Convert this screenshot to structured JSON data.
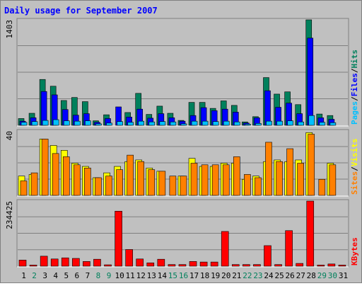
{
  "title": "Daily usage for September 2007",
  "colors": {
    "background": "#c0c0c0",
    "frame_light": "#ffffff",
    "frame_dark": "#808080",
    "grid": "#808080",
    "title": "#0000ff",
    "hits": "#00805c",
    "files": "#0000ff",
    "pages": "#00c0ff",
    "visits": "#ffff00",
    "sites": "#ff8000",
    "kbytes": "#ff0000",
    "day_weekday": "#000000",
    "day_weekend": "#00805c"
  },
  "chart_data": [
    {
      "type": "bar",
      "name": "hits-files-pages",
      "y_max_label": "1403",
      "ylim": [
        0,
        1403
      ],
      "legend_parts": [
        "Pages",
        "Files",
        "Hits"
      ],
      "categories": [
        "1",
        "2",
        "3",
        "4",
        "5",
        "6",
        "7",
        "8",
        "9",
        "10",
        "11",
        "12",
        "13",
        "14",
        "15",
        "16",
        "17",
        "18",
        "19",
        "20",
        "21",
        "22",
        "23",
        "24",
        "25",
        "26",
        "27",
        "28",
        "29",
        "30",
        "31"
      ],
      "series": [
        {
          "name": "Hits",
          "values": [
            90,
            160,
            610,
            520,
            330,
            370,
            315,
            60,
            140,
            0,
            170,
            425,
            145,
            255,
            160,
            65,
            305,
            305,
            225,
            325,
            265,
            45,
            115,
            635,
            415,
            445,
            275,
            1403,
            150,
            130,
            0
          ]
        },
        {
          "name": "Files",
          "values": [
            55,
            100,
            450,
            405,
            210,
            135,
            155,
            40,
            90,
            245,
            110,
            215,
            95,
            155,
            100,
            55,
            130,
            235,
            195,
            215,
            175,
            30,
            100,
            460,
            240,
            295,
            155,
            1160,
            100,
            80,
            0
          ]
        },
        {
          "name": "Pages",
          "values": [
            40,
            50,
            65,
            75,
            60,
            55,
            60,
            20,
            30,
            50,
            40,
            55,
            45,
            50,
            45,
            20,
            55,
            55,
            50,
            55,
            45,
            15,
            25,
            55,
            55,
            60,
            45,
            130,
            40,
            35,
            0
          ]
        }
      ]
    },
    {
      "type": "bar",
      "name": "visits-sites",
      "y_max_label": "40",
      "ylim": [
        0,
        40
      ],
      "legend_parts": [
        "Sites",
        "Visits"
      ],
      "categories": [
        "1",
        "2",
        "3",
        "4",
        "5",
        "6",
        "7",
        "8",
        "9",
        "10",
        "11",
        "12",
        "13",
        "14",
        "15",
        "16",
        "17",
        "18",
        "19",
        "20",
        "21",
        "22",
        "23",
        "24",
        "25",
        "26",
        "27",
        "28",
        "29",
        "30",
        "31"
      ],
      "series": [
        {
          "name": "Visits",
          "values": [
            12,
            13,
            35,
            31,
            28,
            20,
            18,
            11,
            14,
            18,
            21,
            22,
            17,
            15,
            0,
            12,
            23,
            18,
            18,
            20,
            20,
            10,
            12,
            21,
            22,
            21,
            22,
            39,
            0,
            20,
            0
          ]
        },
        {
          "name": "Sites",
          "values": [
            9,
            14,
            35,
            26,
            24,
            19,
            17,
            11,
            12,
            16,
            25,
            21,
            16,
            15,
            12,
            12,
            20,
            19,
            19,
            19,
            24,
            13,
            11,
            33,
            21,
            29,
            20,
            38,
            10,
            19,
            0
          ]
        }
      ]
    },
    {
      "type": "bar",
      "name": "kbytes",
      "y_max_label": "234425",
      "ylim": [
        0,
        234425
      ],
      "legend_parts": [
        "KBytes"
      ],
      "categories": [
        "1",
        "2",
        "3",
        "4",
        "5",
        "6",
        "7",
        "8",
        "9",
        "10",
        "11",
        "12",
        "13",
        "14",
        "15",
        "16",
        "17",
        "18",
        "19",
        "20",
        "21",
        "22",
        "23",
        "24",
        "25",
        "26",
        "27",
        "28",
        "29",
        "30",
        "31"
      ],
      "series": [
        {
          "name": "KBytes",
          "values": [
            22000,
            4000,
            36000,
            26000,
            30000,
            28000,
            17000,
            25000,
            5000,
            198000,
            60000,
            26000,
            12000,
            25000,
            6000,
            6000,
            17000,
            15000,
            15000,
            125000,
            6000,
            6000,
            6000,
            74000,
            6000,
            128000,
            10000,
            234425,
            4000,
            8000,
            4000
          ]
        }
      ]
    }
  ],
  "days": [
    {
      "label": "1",
      "weekend": false
    },
    {
      "label": "2",
      "weekend": true
    },
    {
      "label": "3",
      "weekend": false
    },
    {
      "label": "4",
      "weekend": false
    },
    {
      "label": "5",
      "weekend": false
    },
    {
      "label": "6",
      "weekend": false
    },
    {
      "label": "7",
      "weekend": false
    },
    {
      "label": "8",
      "weekend": true
    },
    {
      "label": "9",
      "weekend": true
    },
    {
      "label": "10",
      "weekend": false
    },
    {
      "label": "11",
      "weekend": false
    },
    {
      "label": "12",
      "weekend": false
    },
    {
      "label": "13",
      "weekend": false
    },
    {
      "label": "14",
      "weekend": false
    },
    {
      "label": "15",
      "weekend": true
    },
    {
      "label": "16",
      "weekend": true
    },
    {
      "label": "17",
      "weekend": false
    },
    {
      "label": "18",
      "weekend": false
    },
    {
      "label": "19",
      "weekend": false
    },
    {
      "label": "20",
      "weekend": false
    },
    {
      "label": "21",
      "weekend": false
    },
    {
      "label": "22",
      "weekend": true
    },
    {
      "label": "23",
      "weekend": true
    },
    {
      "label": "24",
      "weekend": false
    },
    {
      "label": "25",
      "weekend": false
    },
    {
      "label": "26",
      "weekend": false
    },
    {
      "label": "27",
      "weekend": false
    },
    {
      "label": "28",
      "weekend": false
    },
    {
      "label": "29",
      "weekend": true
    },
    {
      "label": "30",
      "weekend": true
    },
    {
      "label": "31",
      "weekend": false
    }
  ]
}
